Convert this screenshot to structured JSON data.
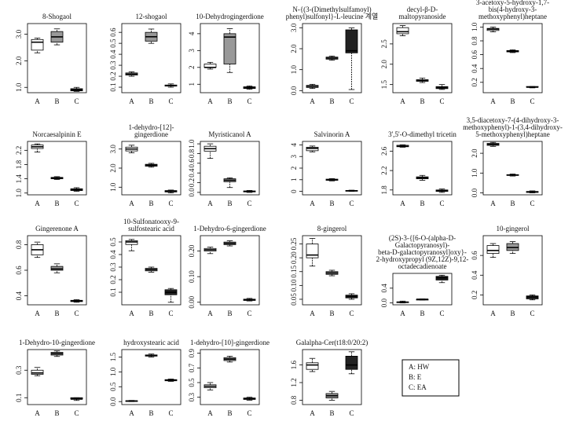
{
  "box_colors": [
    "#ffffff",
    "#999999",
    "#222222"
  ],
  "legend_box": [
    "A: HW",
    "B: E",
    "C: EA"
  ],
  "chart_data": [
    {
      "type": "box",
      "title": [
        "8-Shogaol"
      ],
      "categories": [
        "A",
        "B",
        "C"
      ],
      "ylim": [
        0.8,
        3.4
      ],
      "yticks": [
        {
          "value": 1,
          "label": "1.0"
        },
        {
          "value": 2,
          "label": "2.0"
        },
        {
          "value": 3,
          "label": "3.0"
        }
      ],
      "boxes": [
        [
          2.3,
          2.4,
          2.7,
          2.8,
          2.85
        ],
        [
          2.6,
          2.7,
          2.9,
          3.1,
          3.2
        ],
        [
          0.85,
          0.87,
          0.9,
          0.95,
          1.0
        ]
      ]
    },
    {
      "type": "box",
      "title": [
        "12-shogaol"
      ],
      "categories": [
        "A",
        "B",
        "C"
      ],
      "ylim": [
        0.05,
        0.68
      ],
      "yticks": [
        0.1,
        0.2,
        0.3,
        0.4,
        0.5,
        0.6
      ],
      "boxes": [
        [
          0.2,
          0.21,
          0.22,
          0.23,
          0.24
        ],
        [
          0.5,
          0.52,
          0.56,
          0.6,
          0.63
        ],
        [
          0.1,
          0.11,
          0.115,
          0.12,
          0.13
        ]
      ]
    },
    {
      "type": "box",
      "title": [
        "10-Dehydrogingerdione"
      ],
      "categories": [
        "A",
        "B",
        "C"
      ],
      "ylim": [
        0.5,
        4.6
      ],
      "yticks": [
        1,
        2,
        3,
        4
      ],
      "boxes": [
        [
          1.9,
          2.0,
          2.0,
          2.2,
          2.3
        ],
        [
          1.7,
          2.2,
          3.8,
          4.0,
          4.3
        ],
        [
          0.7,
          0.75,
          0.8,
          0.85,
          0.9
        ]
      ]
    },
    {
      "type": "box",
      "title": [
        "N-{(3-(Dimethylsulfamoyl)",
        "phenyl)sulfonyl}-L-leucine 계열"
      ],
      "categories": [
        "A",
        "B",
        "C"
      ],
      "ylim": [
        -0.1,
        3.2
      ],
      "yticks": [
        {
          "value": 0,
          "label": "0.0"
        },
        {
          "value": 1,
          "label": "1.0"
        },
        {
          "value": 2,
          "label": "2.0"
        },
        {
          "value": 3,
          "label": "3.0"
        }
      ],
      "boxes": [
        [
          0.1,
          0.15,
          0.2,
          0.25,
          0.3
        ],
        [
          1.45,
          1.5,
          1.55,
          1.6,
          1.65
        ],
        [
          0.05,
          1.8,
          1.9,
          2.9,
          3.0
        ]
      ]
    },
    {
      "type": "box",
      "title": [
        "decyl-β-D-",
        "maltopyranoside"
      ],
      "categories": [
        "A",
        "B",
        "C"
      ],
      "ylim": [
        1.3,
        3.0
      ],
      "yticks": [
        1.5,
        {
          "value": 2,
          "label": "2.0"
        },
        2.5
      ],
      "boxes": [
        [
          2.7,
          2.75,
          2.8,
          2.9,
          2.95
        ],
        [
          1.55,
          1.58,
          1.6,
          1.62,
          1.66
        ],
        [
          1.38,
          1.4,
          1.43,
          1.45,
          1.5
        ]
      ]
    },
    {
      "type": "box",
      "title": [
        "3-acetoxy-5-hydroxy-1,7-",
        "bis(4-hydroxy-3-",
        "methoxyphenyl)heptane"
      ],
      "categories": [
        "A",
        "B",
        "C"
      ],
      "ylim": [
        0.05,
        1.05
      ],
      "yticks": [
        0.2,
        0.4,
        0.6,
        0.8,
        {
          "value": 1,
          "label": "1.0"
        }
      ],
      "boxes": [
        [
          0.93,
          0.95,
          0.97,
          0.98,
          1.0
        ],
        [
          0.63,
          0.64,
          0.65,
          0.66,
          0.67
        ],
        [
          0.12,
          0.13,
          0.13,
          0.14,
          0.14
        ]
      ]
    },
    {
      "type": "box",
      "title": [
        "Norcaesalpinin E"
      ],
      "categories": [
        "A",
        "B",
        "C"
      ],
      "ylim": [
        0.95,
        2.45
      ],
      "yticks": [
        {
          "value": 1,
          "label": "1.0"
        },
        1.4,
        1.8,
        2.2
      ],
      "boxes": [
        [
          2.15,
          2.25,
          2.3,
          2.35,
          2.38
        ],
        [
          1.38,
          1.4,
          1.42,
          1.44,
          1.46
        ],
        [
          1.05,
          1.07,
          1.1,
          1.12,
          1.15
        ]
      ]
    },
    {
      "type": "box",
      "title": [
        "1-dehydro-[12]-",
        "gingerdione"
      ],
      "categories": [
        "A",
        "B",
        "C"
      ],
      "ylim": [
        0.6,
        3.4
      ],
      "yticks": [
        {
          "value": 1,
          "label": "1.0"
        },
        {
          "value": 2,
          "label": "2.0"
        },
        {
          "value": 3,
          "label": "3.0"
        }
      ],
      "boxes": [
        [
          2.8,
          2.9,
          3.0,
          3.1,
          3.2
        ],
        [
          2.05,
          2.1,
          2.15,
          2.2,
          2.25
        ],
        [
          0.7,
          0.75,
          0.8,
          0.82,
          0.85
        ]
      ]
    },
    {
      "type": "box",
      "title": [
        "Myristicanol A"
      ],
      "categories": [
        "A",
        "B",
        "C"
      ],
      "ylim": [
        -0.05,
        1.05
      ],
      "yticks": [
        {
          "value": 0,
          "label": "0.0"
        },
        0.2,
        0.4,
        0.6,
        0.8,
        {
          "value": 1,
          "label": "1.0"
        }
      ],
      "boxes": [
        [
          0.7,
          0.85,
          0.9,
          0.95,
          1.0
        ],
        [
          0.1,
          0.22,
          0.25,
          0.28,
          0.3
        ],
        [
          0.0,
          0.01,
          0.02,
          0.03,
          0.04
        ]
      ]
    },
    {
      "type": "box",
      "title": [
        "Salvinorin A"
      ],
      "categories": [
        "A",
        "B",
        "C"
      ],
      "ylim": [
        -0.3,
        4.3
      ],
      "yticks": [
        0,
        1,
        2,
        3,
        4
      ],
      "boxes": [
        [
          3.4,
          3.5,
          3.7,
          3.8,
          3.9
        ],
        [
          0.9,
          0.95,
          1.0,
          1.05,
          1.1
        ],
        [
          0.0,
          0.02,
          0.05,
          0.08,
          0.1
        ]
      ]
    },
    {
      "type": "box",
      "title": [
        "3',5'-O-dimethyl  tricetin"
      ],
      "categories": [
        "A",
        "B",
        "C"
      ],
      "ylim": [
        1.7,
        2.8
      ],
      "yticks": [
        1.8,
        2.2,
        2.6
      ],
      "boxes": [
        [
          2.68,
          2.69,
          2.7,
          2.72,
          2.73
        ],
        [
          2.0,
          2.03,
          2.05,
          2.07,
          2.1
        ],
        [
          1.75,
          1.77,
          1.79,
          1.8,
          1.82
        ]
      ]
    },
    {
      "type": "box",
      "title": [
        "3,5-diacetoxy-7-(4-dihydroxy-3-",
        "methoxyphenyl)-1-(3,4-dihydroxy-",
        "5-methoxyphenyl)heptane"
      ],
      "categories": [
        "A",
        "B",
        "C"
      ],
      "ylim": [
        -0.1,
        2.6
      ],
      "yticks": [
        {
          "value": 0,
          "label": "0.0"
        },
        {
          "value": 1,
          "label": "1.0"
        },
        {
          "value": 2,
          "label": "2.0"
        }
      ],
      "boxes": [
        [
          2.35,
          2.4,
          2.45,
          2.5,
          2.55
        ],
        [
          0.85,
          0.88,
          0.9,
          0.92,
          0.95
        ],
        [
          0.0,
          0.02,
          0.05,
          0.07,
          0.1
        ]
      ]
    },
    {
      "type": "box",
      "title": [
        "Gingerenone A"
      ],
      "categories": [
        "A",
        "B",
        "C"
      ],
      "ylim": [
        0.33,
        0.87
      ],
      "yticks": [
        0.4,
        0.6,
        0.8
      ],
      "boxes": [
        [
          0.7,
          0.72,
          0.76,
          0.8,
          0.82
        ],
        [
          0.58,
          0.6,
          0.61,
          0.63,
          0.65
        ],
        [
          0.35,
          0.355,
          0.36,
          0.365,
          0.37
        ]
      ]
    },
    {
      "type": "box",
      "title": [
        "10-Sulfonatooxy-9-",
        "sulfostearic acid"
      ],
      "categories": [
        "A",
        "B",
        "C"
      ],
      "ylim": [
        0.0,
        0.55
      ],
      "yticks": [
        0.1,
        0.2,
        0.3,
        0.4,
        0.5
      ],
      "boxes": [
        [
          0.43,
          0.48,
          0.5,
          0.51,
          0.52
        ],
        [
          0.26,
          0.27,
          0.28,
          0.29,
          0.3
        ],
        [
          0.02,
          0.08,
          0.1,
          0.12,
          0.13
        ]
      ]
    },
    {
      "type": "box",
      "title": [
        "1-Dehydro-6-gingerdione"
      ],
      "categories": [
        "A",
        "B",
        "C"
      ],
      "ylim": [
        -0.01,
        0.26
      ],
      "yticks": [
        {
          "value": 0,
          "label": "0.00"
        },
        {
          "value": 0.1,
          "label": "0.10"
        },
        {
          "value": 0.2,
          "label": "0.20"
        }
      ],
      "boxes": [
        [
          0.19,
          0.2,
          0.205,
          0.21,
          0.215
        ],
        [
          0.22,
          0.225,
          0.23,
          0.235,
          0.24
        ],
        [
          0.005,
          0.007,
          0.01,
          0.012,
          0.015
        ]
      ]
    },
    {
      "type": "box",
      "title": [
        "8-gingerol"
      ],
      "categories": [
        "A",
        "B",
        "C"
      ],
      "ylim": [
        0.03,
        0.28
      ],
      "yticks": [
        0.05,
        {
          "value": 0.1,
          "label": "0.10"
        },
        0.15,
        {
          "value": 0.2,
          "label": "0.20"
        },
        0.25
      ],
      "boxes": [
        [
          0.17,
          0.2,
          0.21,
          0.25,
          0.27
        ],
        [
          0.135,
          0.14,
          0.145,
          0.15,
          0.155
        ],
        [
          0.05,
          0.055,
          0.06,
          0.065,
          0.07
        ]
      ]
    },
    {
      "type": "box",
      "title": [
        "(2S)-3-{[6-O-(alpha-D-",
        "Galactopyranosyl)-",
        "beta-D-galactopyranosyl]oxy}-",
        "2-hydroxypropyl (9Z,12Z)-9,12-",
        "octadecadienoate"
      ],
      "categories": [
        "A",
        "B",
        "C"
      ],
      "ylim": [
        -0.05,
        0.8
      ],
      "yticks": [
        {
          "value": 0,
          "label": "0.0"
        },
        0.4
      ],
      "boxes": [
        [
          0.0,
          0.01,
          0.02,
          0.03,
          0.05
        ],
        [
          0.08,
          0.09,
          0.1,
          0.1,
          0.11
        ],
        [
          0.55,
          0.62,
          0.68,
          0.72,
          0.75
        ]
      ]
    },
    {
      "type": "box",
      "title": [
        "10-gingerol"
      ],
      "categories": [
        "A",
        "B",
        "C"
      ],
      "ylim": [
        0.1,
        0.8
      ],
      "yticks": [
        0.2,
        0.4,
        0.6
      ],
      "boxes": [
        [
          0.58,
          0.62,
          0.65,
          0.7,
          0.72
        ],
        [
          0.62,
          0.65,
          0.68,
          0.72,
          0.74
        ],
        [
          0.15,
          0.16,
          0.18,
          0.19,
          0.2
        ]
      ]
    },
    {
      "type": "box",
      "title": [
        "1-Dehydro-10-gingerdione"
      ],
      "categories": [
        "A",
        "B",
        "C"
      ],
      "ylim": [
        0.05,
        0.45
      ],
      "yticks": [
        0.1,
        0.3
      ],
      "boxes": [
        [
          0.26,
          0.27,
          0.28,
          0.3,
          0.32
        ],
        [
          0.4,
          0.41,
          0.42,
          0.43,
          0.44
        ],
        [
          0.08,
          0.09,
          0.09,
          0.1,
          0.1
        ]
      ]
    },
    {
      "type": "box",
      "title": [
        "hydroxystearic acid"
      ],
      "categories": [
        "A",
        "B",
        "C"
      ],
      "ylim": [
        -0.1,
        1.75
      ],
      "yticks": [
        {
          "value": 0,
          "label": "0.0"
        },
        0.5,
        {
          "value": 1,
          "label": "1.0"
        },
        1.5
      ],
      "boxes": [
        [
          0.0,
          0.01,
          0.02,
          0.03,
          0.04
        ],
        [
          1.5,
          1.53,
          1.55,
          1.57,
          1.6
        ],
        [
          0.68,
          0.7,
          0.72,
          0.74,
          0.76
        ]
      ]
    },
    {
      "type": "box",
      "title": [
        "1-dehydro-[10]-gingerdione"
      ],
      "categories": [
        "A",
        "B",
        "C"
      ],
      "ylim": [
        0.2,
        0.95
      ],
      "yticks": [
        0.3,
        0.5,
        0.7,
        0.9
      ],
      "boxes": [
        [
          0.4,
          0.43,
          0.45,
          0.47,
          0.5
        ],
        [
          0.78,
          0.8,
          0.82,
          0.84,
          0.86
        ],
        [
          0.26,
          0.27,
          0.28,
          0.29,
          0.3
        ]
      ]
    },
    {
      "type": "box",
      "title": [
        "Galalpha-Cer(t18:0/20:2)"
      ],
      "categories": [
        "A",
        "B",
        "C"
      ],
      "ylim": [
        0.7,
        1.95
      ],
      "yticks": [
        0.8,
        1.2,
        1.6
      ],
      "boxes": [
        [
          1.45,
          1.5,
          1.6,
          1.65,
          1.75
        ],
        [
          0.8,
          0.85,
          0.9,
          0.95,
          1.0
        ],
        [
          1.4,
          1.5,
          1.6,
          1.8,
          1.9
        ]
      ]
    }
  ]
}
